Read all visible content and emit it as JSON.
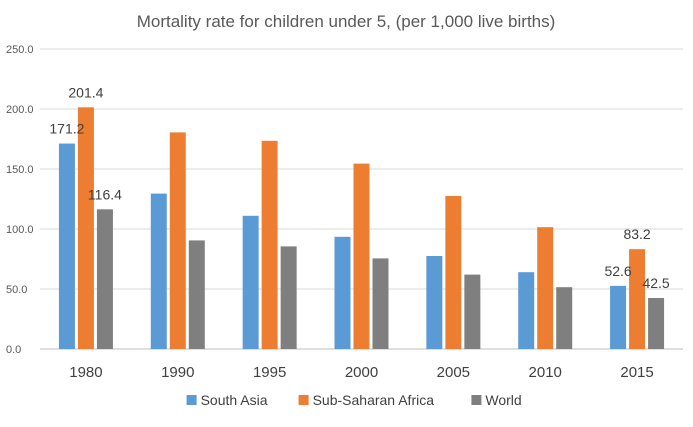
{
  "chart_data": {
    "type": "bar",
    "title": "Mortality rate for children under 5, (per 1,000 live births)",
    "xlabel": "",
    "ylabel": "",
    "categories": [
      "1980",
      "1990",
      "1995",
      "2000",
      "2005",
      "2010",
      "2015"
    ],
    "ylim": [
      0,
      250
    ],
    "yticks": [
      "0.0",
      "50.0",
      "100.0",
      "150.0",
      "200.0",
      "250.0"
    ],
    "grid": true,
    "legend_position": "bottom",
    "series": [
      {
        "name": "South Asia",
        "color": "#5b9bd5",
        "values": [
          171.2,
          129.5,
          111.0,
          93.5,
          77.5,
          64.0,
          52.6
        ]
      },
      {
        "name": "Sub-Saharan Africa",
        "color": "#ed7d31",
        "values": [
          201.4,
          180.5,
          173.5,
          154.5,
          127.5,
          101.5,
          83.2
        ]
      },
      {
        "name": "World",
        "color": "#7f7f7f",
        "values": [
          116.4,
          90.5,
          85.5,
          75.5,
          62.0,
          51.5,
          42.5
        ]
      }
    ],
    "data_labels": [
      {
        "series": 0,
        "category": 0,
        "text": "171.2"
      },
      {
        "series": 1,
        "category": 0,
        "text": "201.4"
      },
      {
        "series": 2,
        "category": 0,
        "text": "116.4"
      },
      {
        "series": 0,
        "category": 6,
        "text": "52.6"
      },
      {
        "series": 1,
        "category": 6,
        "text": "83.2"
      },
      {
        "series": 2,
        "category": 6,
        "text": "42.5"
      }
    ]
  }
}
